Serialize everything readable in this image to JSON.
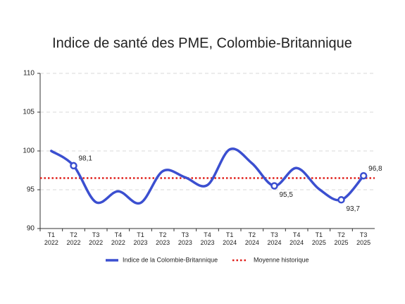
{
  "chart_data": {
    "type": "line",
    "title": "Indice de santé des PME, Colombie-Britannique",
    "categories": [
      "T1 2022",
      "T2 2022",
      "T3 2022",
      "T4 2022",
      "T1 2023",
      "T2 2023",
      "T3 2023",
      "T4 2023",
      "T1 2024",
      "T2 2024",
      "T3 2024",
      "T4 2024",
      "T1 2025",
      "T2 2025",
      "T3 2025"
    ],
    "series": [
      {
        "name": "Indice de la Colombie-Britannique",
        "color": "#3b4fd0",
        "values": [
          100.0,
          98.1,
          93.4,
          94.8,
          93.3,
          97.4,
          96.6,
          95.6,
          100.2,
          98.4,
          95.5,
          97.8,
          95.1,
          93.7,
          96.8
        ],
        "value_labels": [
          null,
          "98,1",
          null,
          null,
          null,
          null,
          null,
          null,
          null,
          null,
          "95,5",
          null,
          null,
          "93,7",
          "96,8"
        ]
      }
    ],
    "reference": {
      "name": "Moyenne historique",
      "value": 96.5,
      "color": "#e0201c"
    },
    "ylim": [
      90,
      110
    ],
    "yticks": [
      90,
      95,
      100,
      105,
      110
    ],
    "grid": true
  }
}
